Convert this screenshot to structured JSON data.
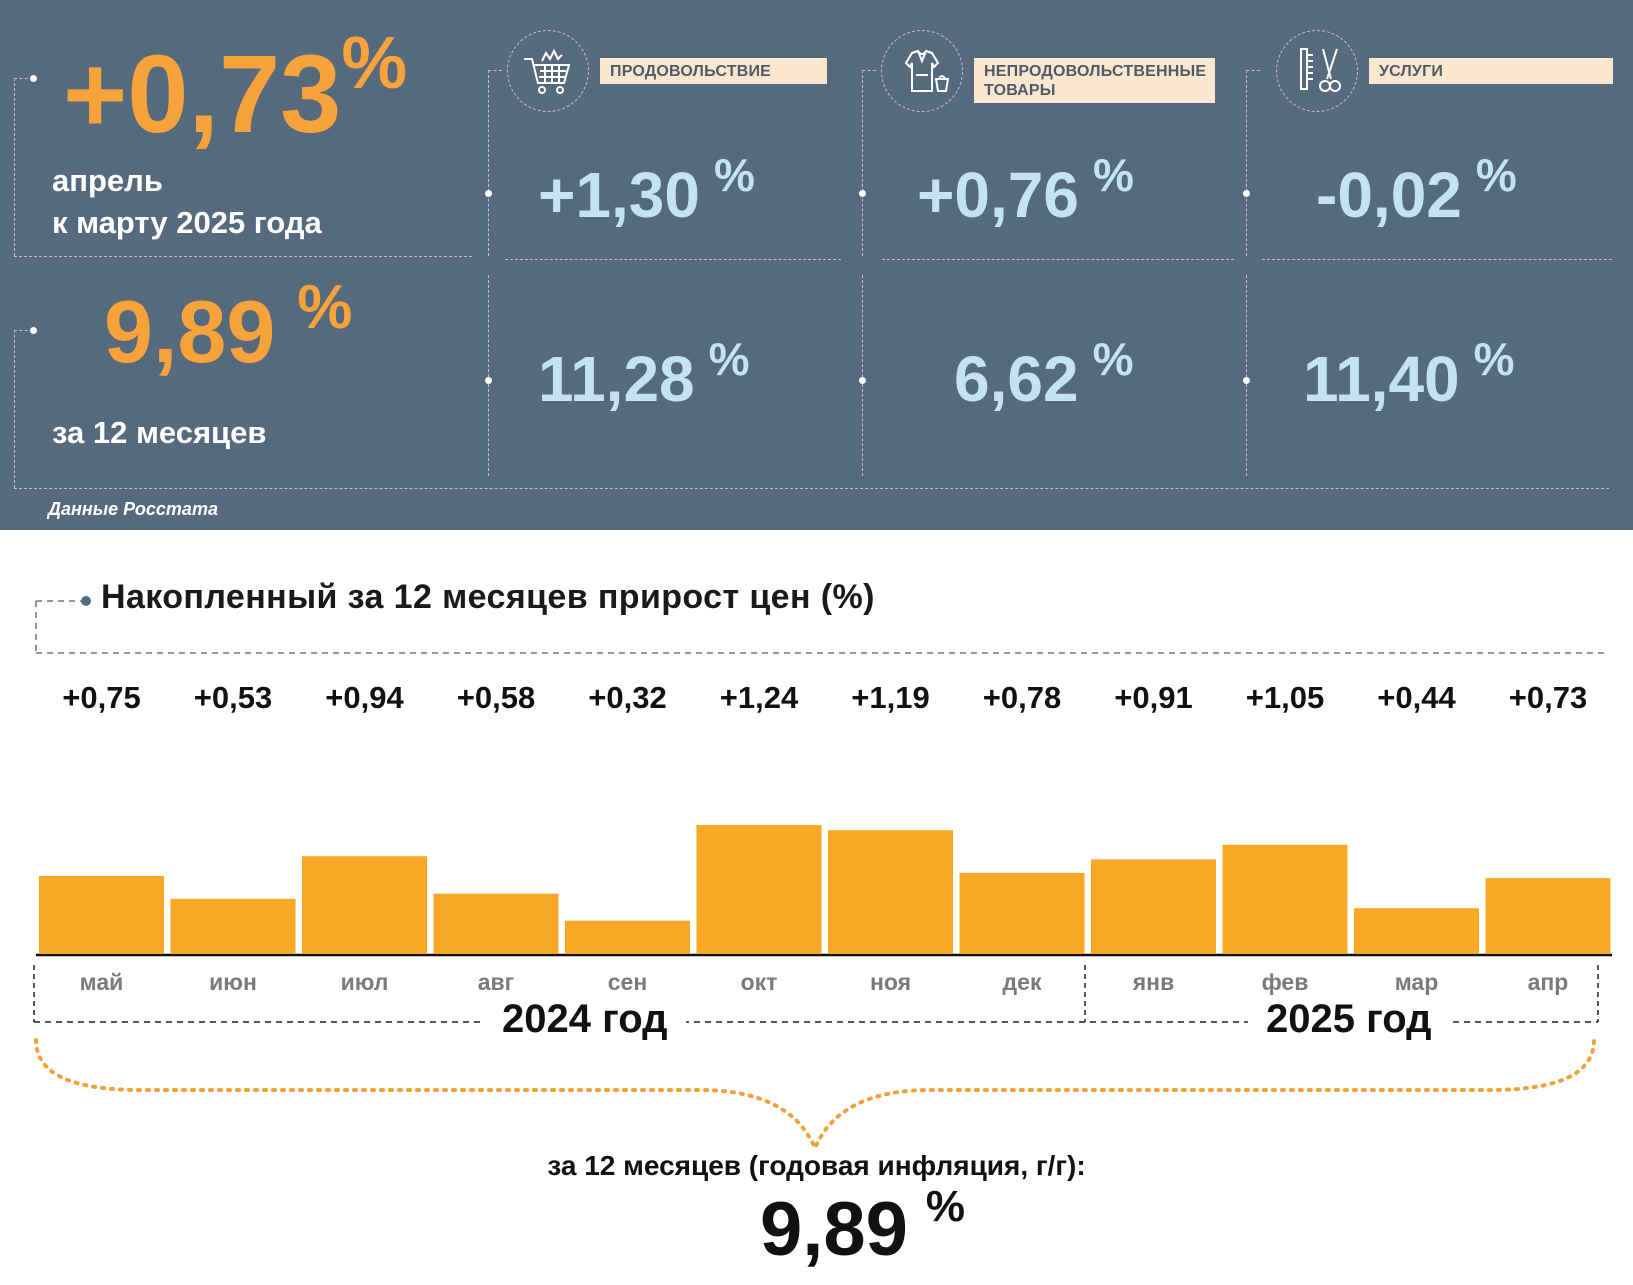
{
  "colors": {
    "panel_bg": "#566a7e",
    "accent": "#f7a23a",
    "value": "#c4e3f0",
    "bar": "#f9a825",
    "label_bg": "#fbe7cf"
  },
  "headline": {
    "monthly_value": "+0,73",
    "monthly_unit": "%",
    "monthly_line1": "апрель",
    "monthly_line2": "к марту 2025 года",
    "annual_value": "9,89",
    "annual_unit": "%",
    "annual_label": "за 12 месяцев"
  },
  "categories": [
    {
      "label": "ПРОДОВОЛЬСТВИЕ",
      "icon": "shopping-cart-icon",
      "monthly": "+1,30",
      "annual": "11,28",
      "unit": "%"
    },
    {
      "label": "НЕПРОДОВОЛЬСТВЕННЫЕ ТОВАРЫ",
      "icon": "clothes-icon",
      "monthly": "+0,76",
      "annual": "6,62",
      "unit": "%"
    },
    {
      "label": "УСЛУГИ",
      "icon": "scissors-comb-icon",
      "monthly": "-0,02",
      "annual": "11,40",
      "unit": "%"
    }
  ],
  "source": "Данные Росстата",
  "chart_title": "Накопленный за 12 месяцев прирост цен (%)",
  "chart_data": {
    "type": "bar",
    "title": "Накопленный за 12 месяцев прирост цен (%)",
    "categories": [
      "май",
      "июн",
      "июл",
      "авг",
      "сен",
      "окт",
      "ноя",
      "дек",
      "янв",
      "фев",
      "мар",
      "апр"
    ],
    "values": [
      0.75,
      0.53,
      0.94,
      0.58,
      0.32,
      1.24,
      1.19,
      0.78,
      0.91,
      1.05,
      0.44,
      0.73
    ],
    "value_labels": [
      "+0,75",
      "+0,53",
      "+0,94",
      "+0,58",
      "+0,32",
      "+1,24",
      "+1,19",
      "+0,78",
      "+0,91",
      "+1,05",
      "+0,44",
      "+0,73"
    ],
    "groups": [
      {
        "label": "2024 год",
        "months": [
          "май",
          "июн",
          "июл",
          "авг",
          "сен",
          "окт",
          "ноя",
          "дек"
        ]
      },
      {
        "label": "2025 год",
        "months": [
          "янв",
          "фев",
          "мар",
          "апр"
        ]
      }
    ],
    "ylim": [
      0,
      1.3
    ],
    "grid": false
  },
  "footer": {
    "label": "за 12 месяцев (годовая инфляция, г/г):",
    "value": "9,89",
    "unit": "%"
  }
}
